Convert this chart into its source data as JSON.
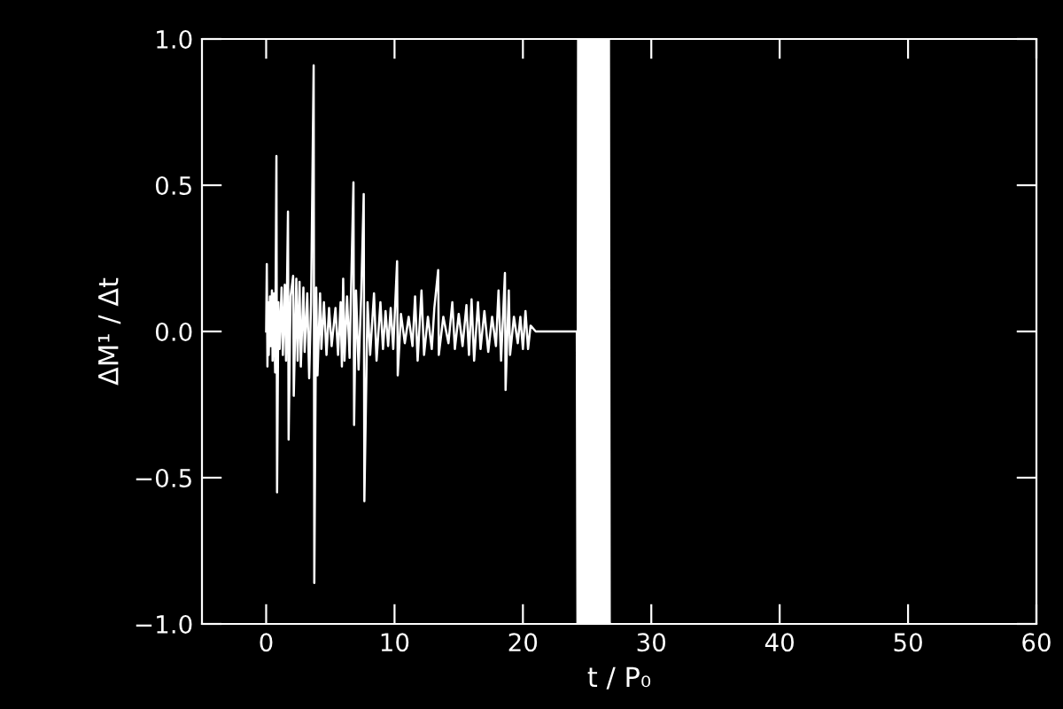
{
  "chart_data": {
    "type": "line",
    "xlabel": "t / P₀",
    "ylabel": "ΔM¹ / Δt",
    "xlim": [
      -5,
      60
    ],
    "xticks": [
      0,
      10,
      20,
      30,
      40,
      50,
      60
    ],
    "ylim": [
      -1,
      1
    ],
    "yticks": [
      {
        "value": -1,
        "label": "−1.0"
      },
      {
        "value": -0.5,
        "label": "−0.5"
      },
      {
        "value": 0,
        "label": "0.0"
      },
      {
        "value": 0.5,
        "label": "0.5"
      },
      {
        "value": 1,
        "label": "1.0"
      }
    ],
    "grid": false,
    "legend": false,
    "marker": "none",
    "line_style": "solid",
    "series": [
      {
        "color": "#ffffff",
        "x": [
          0.0,
          0.05,
          0.1,
          0.15,
          0.2,
          0.3,
          0.35,
          0.45,
          0.5,
          0.6,
          0.7,
          0.8,
          0.85,
          0.95,
          1.05,
          1.2,
          1.3,
          1.45,
          1.55,
          1.7,
          1.75,
          1.9,
          2.1,
          2.15,
          2.35,
          2.45,
          2.6,
          2.7,
          2.9,
          3.0,
          3.2,
          3.35,
          3.5,
          3.7,
          3.75,
          3.9,
          4.0,
          4.2,
          4.3,
          4.5,
          4.7,
          4.9,
          5.1,
          5.4,
          5.6,
          5.8,
          5.9,
          6.0,
          6.1,
          6.3,
          6.5,
          6.8,
          6.85,
          7.0,
          7.2,
          7.4,
          7.6,
          7.65,
          7.9,
          8.1,
          8.4,
          8.6,
          8.9,
          9.1,
          9.3,
          9.5,
          9.7,
          9.9,
          10.2,
          10.25,
          10.5,
          10.8,
          11.1,
          11.4,
          11.6,
          11.8,
          12.1,
          12.3,
          12.6,
          12.9,
          13.1,
          13.4,
          13.45,
          13.8,
          14.2,
          14.5,
          14.7,
          15.0,
          15.3,
          15.6,
          15.8,
          16.0,
          16.2,
          16.5,
          16.7,
          17.0,
          17.3,
          17.6,
          17.9,
          18.1,
          18.3,
          18.6,
          18.65,
          18.9,
          19.0,
          19.3,
          19.6,
          19.8,
          20.0,
          20.2,
          20.4,
          20.6,
          21.0,
          24.2,
          24.25,
          24.3,
          24.36,
          24.42,
          24.48,
          24.54,
          24.6,
          24.66,
          24.72,
          24.78,
          24.84,
          24.9,
          24.96,
          25.02,
          25.08,
          25.14,
          25.2,
          25.26,
          25.32,
          25.38,
          25.44,
          25.5,
          25.56,
          25.62,
          25.68,
          25.74,
          25.8,
          25.86,
          25.92,
          25.98,
          26.04,
          26.1,
          26.16,
          26.22,
          26.28,
          26.34,
          26.4,
          26.46,
          26.52,
          26.58,
          26.64,
          26.7,
          26.76,
          26.8
        ],
        "values": [
          0,
          0.23,
          -0.12,
          0.1,
          -0.08,
          0.12,
          -0.05,
          0.14,
          -0.1,
          0.13,
          -0.14,
          0.6,
          -0.55,
          0.1,
          -0.06,
          0.15,
          -0.08,
          0.16,
          -0.1,
          0.41,
          -0.37,
          0.12,
          0.19,
          -0.22,
          0.18,
          -0.1,
          0.17,
          -0.12,
          0.15,
          -0.07,
          0.13,
          -0.16,
          0.1,
          0.91,
          -0.86,
          0.15,
          -0.15,
          0.13,
          -0.06,
          0.1,
          -0.08,
          0.08,
          -0.05,
          0.08,
          -0.08,
          0.1,
          -0.12,
          0.18,
          -0.1,
          0.12,
          -0.09,
          0.51,
          -0.32,
          0.14,
          -0.13,
          0.12,
          0.47,
          -0.58,
          0.1,
          -0.08,
          0.13,
          -0.1,
          0.1,
          -0.06,
          0.07,
          -0.05,
          0.08,
          -0.06,
          0.24,
          -0.15,
          0.06,
          -0.04,
          0.05,
          -0.05,
          0.12,
          -0.1,
          0.14,
          -0.08,
          0.05,
          -0.06,
          0.08,
          0.21,
          -0.08,
          0.05,
          -0.04,
          0.1,
          -0.06,
          0.06,
          -0.05,
          0.09,
          -0.08,
          0.11,
          -0.1,
          0.1,
          -0.06,
          0.07,
          -0.07,
          0.05,
          -0.05,
          0.14,
          -0.1,
          0.2,
          -0.2,
          0.14,
          -0.08,
          0.05,
          -0.04,
          0.05,
          -0.06,
          0.07,
          -0.06,
          0.02,
          0,
          0,
          -1,
          1,
          -1,
          1,
          -1,
          1,
          -1,
          1,
          -1,
          1,
          -1,
          1,
          -1,
          1,
          -1,
          1,
          -1,
          1,
          -1,
          1,
          -1,
          1,
          -1,
          1,
          -1,
          1,
          -1,
          1,
          -1,
          1,
          -1,
          1,
          -1,
          1,
          -1,
          1,
          -1,
          1,
          -1,
          1,
          -1,
          1,
          -1,
          -1
        ]
      }
    ]
  }
}
